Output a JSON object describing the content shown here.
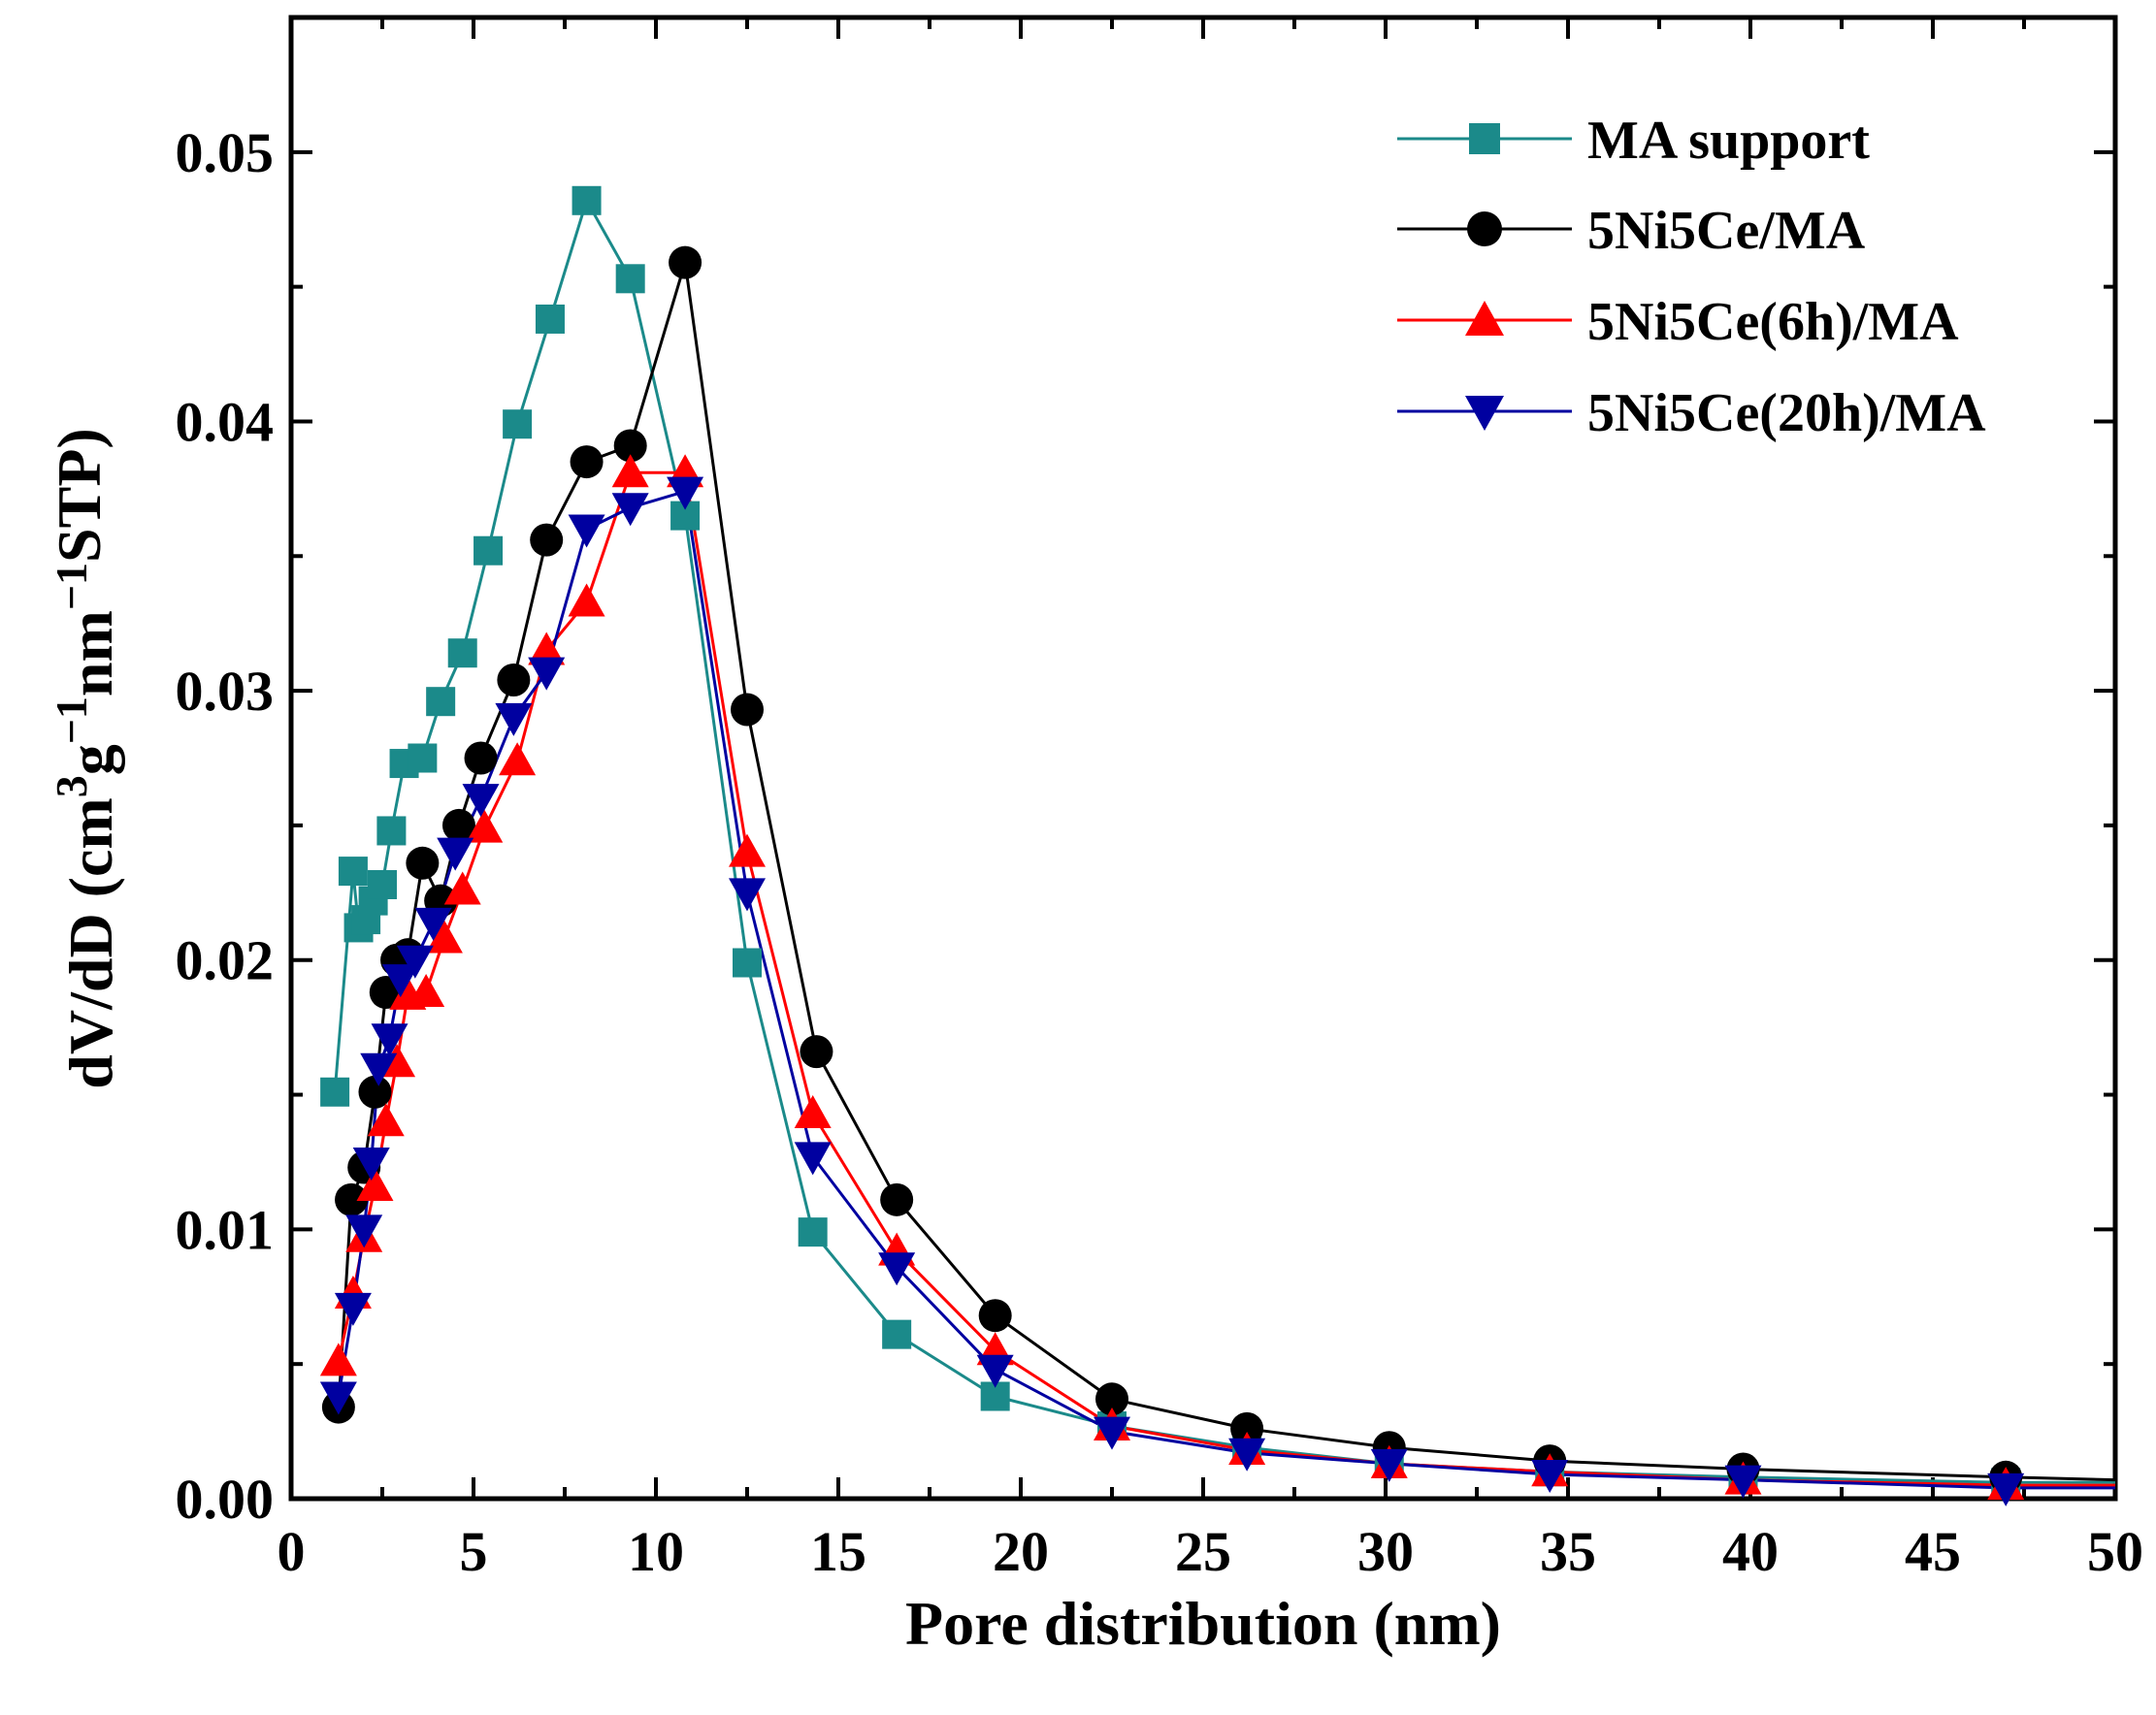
{
  "chart_data": {
    "type": "line",
    "title": "",
    "xlabel": "Pore distribution (nm)",
    "ylabel": "dV/dD (cm",
    "ylabel_parts": {
      "p1": "dV/dD (cm",
      "s1": "3",
      "p2": "g",
      "s2": "−1",
      "p3": "nm",
      "s3": "−1",
      "p4": "STP)"
    },
    "xlim": [
      0,
      50
    ],
    "ylim": [
      0,
      0.055
    ],
    "x_ticks": [
      "0",
      "5",
      "10",
      "15",
      "20",
      "25",
      "30",
      "35",
      "40",
      "45",
      "50"
    ],
    "y_ticks": [
      "0.00",
      "0.01",
      "0.02",
      "0.03",
      "0.04",
      "0.05"
    ],
    "legend_position": "top-right",
    "series": [
      {
        "name": "MA support",
        "color": "#1b8a8a",
        "marker": "square",
        "x": [
          1.2,
          1.7,
          1.85,
          2.05,
          2.25,
          2.5,
          2.75,
          3.1,
          3.6,
          4.1,
          4.7,
          5.4,
          6.2,
          7.1,
          8.1,
          9.3,
          10.8,
          12.5,
          14.3,
          16.6,
          19.3,
          22.5,
          26.2,
          30.1,
          34.5,
          39.8,
          47.0,
          50
        ],
        "y": [
          0.0151,
          0.0233,
          0.0212,
          0.0215,
          0.0222,
          0.0228,
          0.0248,
          0.0273,
          0.0275,
          0.0296,
          0.0314,
          0.0352,
          0.0399,
          0.0438,
          0.0482,
          0.0453,
          0.0365,
          0.0199,
          0.0099,
          0.0061,
          0.0038,
          0.0027,
          0.0019,
          0.0013,
          0.001,
          0.0008,
          0.0006,
          0.0006
        ]
      },
      {
        "name": "5Ni5Ce/MA",
        "color": "#000000",
        "marker": "circle",
        "x": [
          1.3,
          1.65,
          2.0,
          2.3,
          2.6,
          2.9,
          3.2,
          3.6,
          4.1,
          4.6,
          5.2,
          6.1,
          7.0,
          8.1,
          9.3,
          10.8,
          12.5,
          14.4,
          16.6,
          19.3,
          22.5,
          26.2,
          30.1,
          34.5,
          39.8,
          47.0,
          50
        ],
        "y": [
          0.0034,
          0.0111,
          0.0123,
          0.0151,
          0.0188,
          0.02,
          0.0202,
          0.0236,
          0.0222,
          0.025,
          0.0275,
          0.0304,
          0.0356,
          0.0385,
          0.0391,
          0.0459,
          0.0293,
          0.0166,
          0.0111,
          0.0068,
          0.0037,
          0.0026,
          0.0019,
          0.0014,
          0.0011,
          0.0008,
          0.0007
        ]
      },
      {
        "name": "5Ni5Ce(6h)/MA",
        "color": "#ff0000",
        "marker": "triangle-up",
        "x": [
          1.3,
          1.7,
          2.0,
          2.3,
          2.6,
          2.9,
          3.2,
          3.7,
          4.2,
          4.7,
          5.3,
          6.2,
          7.0,
          8.1,
          9.3,
          10.8,
          12.5,
          14.3,
          16.6,
          19.3,
          22.5,
          26.2,
          30.1,
          34.5,
          39.8,
          47.0,
          50
        ],
        "y": [
          0.0051,
          0.0076,
          0.0097,
          0.0116,
          0.014,
          0.0162,
          0.0187,
          0.0188,
          0.0208,
          0.0226,
          0.0249,
          0.0274,
          0.0315,
          0.0333,
          0.0381,
          0.0381,
          0.024,
          0.0143,
          0.0092,
          0.0055,
          0.0027,
          0.0018,
          0.0013,
          0.001,
          0.0007,
          0.0005,
          0.0005
        ]
      },
      {
        "name": "5Ni5Ce(20h)/MA",
        "color": "#0000a0",
        "marker": "triangle-down",
        "x": [
          1.3,
          1.7,
          2.0,
          2.2,
          2.4,
          2.7,
          3.0,
          3.4,
          3.9,
          4.5,
          5.2,
          6.1,
          7.0,
          8.1,
          9.3,
          10.8,
          12.5,
          14.3,
          16.6,
          19.3,
          22.5,
          26.2,
          30.1,
          34.5,
          39.8,
          47.0,
          50
        ],
        "y": [
          0.0038,
          0.0071,
          0.01,
          0.0125,
          0.016,
          0.0171,
          0.0193,
          0.02,
          0.0214,
          0.024,
          0.026,
          0.029,
          0.0307,
          0.036,
          0.0368,
          0.0374,
          0.0225,
          0.0127,
          0.0086,
          0.0048,
          0.0025,
          0.0017,
          0.0013,
          0.0009,
          0.0007,
          0.0004,
          0.0004
        ]
      }
    ]
  }
}
